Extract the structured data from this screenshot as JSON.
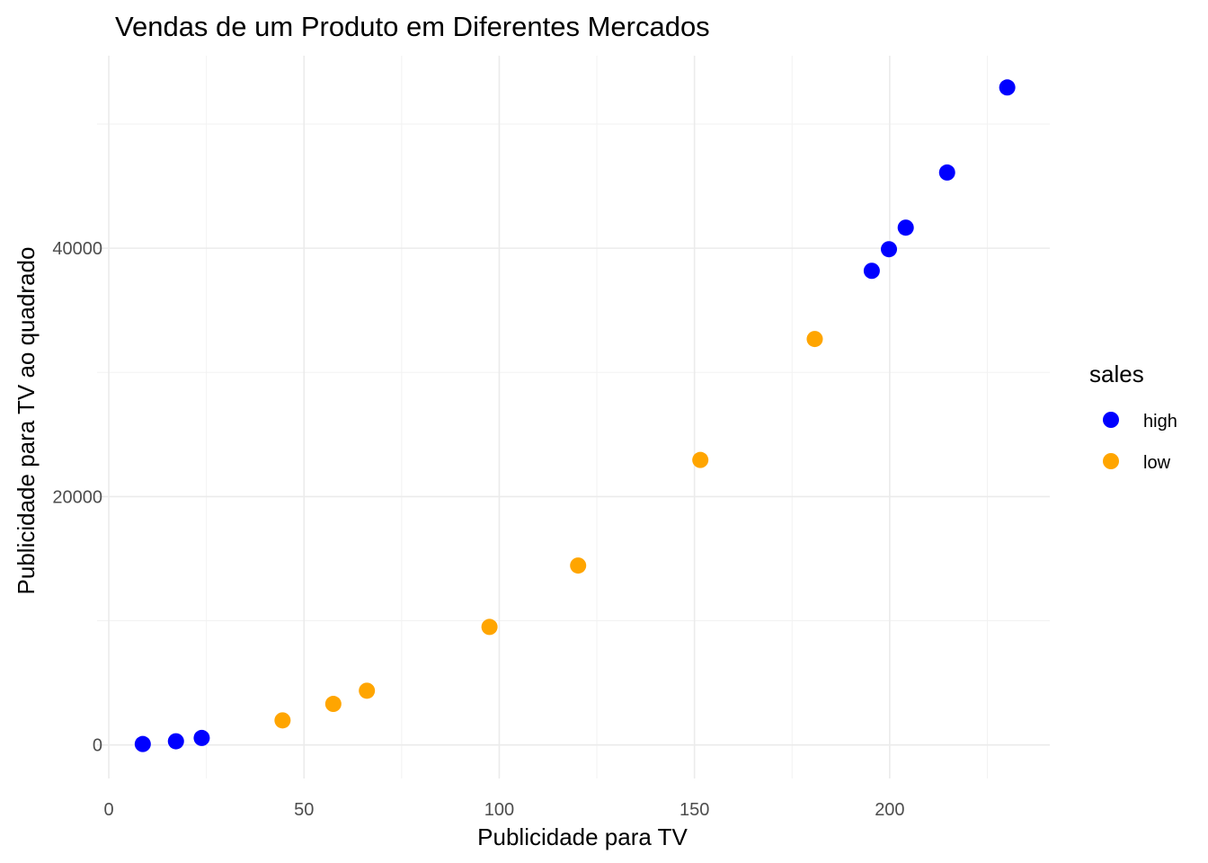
{
  "chart_data": {
    "type": "scatter",
    "title": "Vendas de um Produto em Diferentes Mercados",
    "xlabel": "Publicidade para TV",
    "ylabel": "Publicidade para TV ao quadrado",
    "xlim": [
      -3,
      241
    ],
    "ylim": [
      -2700,
      55500
    ],
    "x_ticks": [
      0,
      50,
      100,
      150,
      200
    ],
    "y_ticks": [
      0,
      20000,
      40000
    ],
    "grid": true,
    "legend": {
      "title": "sales",
      "position": "right",
      "entries": [
        {
          "label": "high",
          "color": "#0000ff"
        },
        {
          "label": "low",
          "color": "#ffa500"
        }
      ]
    },
    "series": [
      {
        "name": "high",
        "color": "#0000ff",
        "points": [
          {
            "x": 8.7,
            "y": 76
          },
          {
            "x": 17.2,
            "y": 296
          },
          {
            "x": 23.8,
            "y": 566
          },
          {
            "x": 195.4,
            "y": 38181
          },
          {
            "x": 199.8,
            "y": 39920
          },
          {
            "x": 204.1,
            "y": 41657
          },
          {
            "x": 214.7,
            "y": 46096
          },
          {
            "x": 230.1,
            "y": 52946
          }
        ]
      },
      {
        "name": "low",
        "color": "#ffa500",
        "points": [
          {
            "x": 44.5,
            "y": 1980
          },
          {
            "x": 57.5,
            "y": 3306
          },
          {
            "x": 66.1,
            "y": 4369
          },
          {
            "x": 97.5,
            "y": 9506
          },
          {
            "x": 120.2,
            "y": 14448
          },
          {
            "x": 151.5,
            "y": 22952
          },
          {
            "x": 180.8,
            "y": 32689
          }
        ]
      }
    ]
  }
}
